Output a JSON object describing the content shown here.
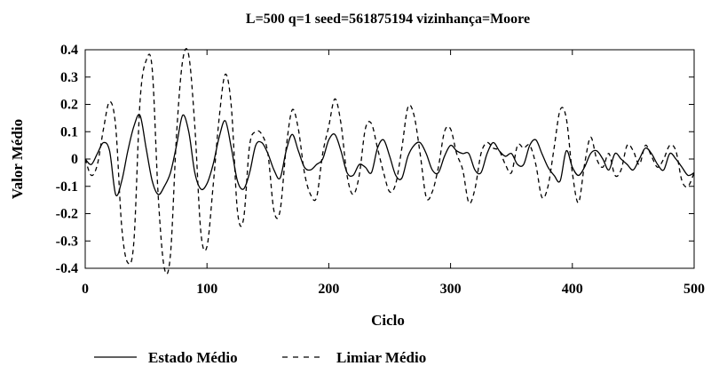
{
  "chart_data": {
    "type": "line",
    "title": "L=500  q=1  seed=561875194  vizinhança=Moore",
    "xlabel": "Ciclo",
    "ylabel": "Valor Médio",
    "xlim": [
      0,
      500
    ],
    "ylim": [
      -0.4,
      0.4
    ],
    "grid": false,
    "legend_position": "bottom",
    "x_ticks": [
      "0",
      "100",
      "200",
      "300",
      "400",
      "500"
    ],
    "y_ticks": [
      "0.4",
      "0.3",
      "0.2",
      "0.1",
      "0",
      "-0.1",
      "-0.2",
      "-0.3",
      "-0.4"
    ],
    "series": [
      {
        "name": "Estado Médio",
        "style": "solid",
        "color": "#000000",
        "x": [
          0,
          5,
          10,
          15,
          20,
          25,
          30,
          35,
          40,
          45,
          50,
          55,
          60,
          65,
          70,
          75,
          80,
          85,
          90,
          95,
          100,
          105,
          110,
          115,
          120,
          125,
          130,
          135,
          140,
          145,
          150,
          155,
          160,
          165,
          170,
          175,
          180,
          185,
          190,
          195,
          200,
          205,
          210,
          215,
          220,
          225,
          230,
          235,
          240,
          245,
          250,
          255,
          260,
          265,
          270,
          275,
          280,
          285,
          290,
          295,
          300,
          305,
          310,
          315,
          320,
          325,
          330,
          335,
          340,
          345,
          350,
          355,
          360,
          365,
          370,
          375,
          380,
          385,
          390,
          395,
          400,
          405,
          410,
          415,
          420,
          425,
          430,
          435,
          440,
          445,
          450,
          455,
          460,
          465,
          470,
          475,
          480,
          485,
          490,
          495,
          500
        ],
        "y": [
          0,
          -0.02,
          0.02,
          0.06,
          0.03,
          -0.13,
          -0.08,
          0.03,
          0.12,
          0.16,
          0.04,
          -0.08,
          -0.13,
          -0.1,
          -0.05,
          0.05,
          0.16,
          0.1,
          -0.05,
          -0.11,
          -0.09,
          -0.02,
          0.08,
          0.14,
          0.04,
          -0.08,
          -0.11,
          -0.05,
          0.05,
          0.06,
          0.02,
          -0.04,
          -0.07,
          0.03,
          0.09,
          0.03,
          -0.03,
          -0.04,
          -0.02,
          0,
          0.07,
          0.09,
          0.03,
          -0.05,
          -0.06,
          -0.02,
          -0.03,
          -0.05,
          0.04,
          0.07,
          0.01,
          -0.06,
          -0.07,
          0.01,
          0.05,
          0.06,
          0.02,
          -0.04,
          -0.05,
          0.01,
          0.05,
          0.03,
          0.02,
          0.02,
          -0.04,
          -0.05,
          0.02,
          0.06,
          0.03,
          0.01,
          0.02,
          -0.02,
          -0.02,
          0.05,
          0.07,
          0.02,
          -0.03,
          -0.06,
          -0.08,
          0.03,
          -0.03,
          -0.06,
          -0.03,
          0.02,
          0.03,
          0,
          -0.04,
          0.02,
          0,
          -0.02,
          -0.04,
          0,
          0.04,
          0.02,
          -0.02,
          -0.04,
          0.02,
          0,
          -0.03,
          -0.06,
          -0.05
        ]
      },
      {
        "name": "Limiar Médio",
        "style": "dashed",
        "color": "#000000",
        "x": [
          0,
          5,
          10,
          15,
          20,
          25,
          30,
          35,
          40,
          45,
          50,
          55,
          60,
          65,
          70,
          75,
          80,
          85,
          90,
          95,
          100,
          105,
          110,
          115,
          120,
          125,
          130,
          135,
          140,
          145,
          150,
          155,
          160,
          165,
          170,
          175,
          180,
          185,
          190,
          195,
          200,
          205,
          210,
          215,
          220,
          225,
          230,
          235,
          240,
          245,
          250,
          255,
          260,
          265,
          270,
          275,
          280,
          285,
          290,
          295,
          300,
          305,
          310,
          315,
          320,
          325,
          330,
          335,
          340,
          345,
          350,
          355,
          360,
          365,
          370,
          375,
          380,
          385,
          390,
          395,
          400,
          405,
          410,
          415,
          420,
          425,
          430,
          435,
          440,
          445,
          450,
          455,
          460,
          465,
          470,
          475,
          480,
          485,
          490,
          495,
          500
        ],
        "y": [
          0,
          -0.06,
          -0.02,
          0.11,
          0.21,
          0.12,
          -0.25,
          -0.38,
          -0.3,
          0.21,
          0.36,
          0.33,
          -0.14,
          -0.41,
          -0.35,
          0.09,
          0.36,
          0.38,
          0.12,
          -0.27,
          -0.32,
          -0.1,
          0.15,
          0.31,
          0.19,
          -0.19,
          -0.22,
          0.05,
          0.1,
          0.09,
          0.02,
          -0.19,
          -0.19,
          0.04,
          0.18,
          0.11,
          -0.05,
          -0.13,
          -0.14,
          0.02,
          0.12,
          0.22,
          0.13,
          -0.06,
          -0.13,
          -0.06,
          0.11,
          0.13,
          0.04,
          -0.05,
          -0.12,
          -0.09,
          0.04,
          0.19,
          0.16,
          0.02,
          -0.14,
          -0.12,
          -0.03,
          0.1,
          0.11,
          0.02,
          -0.04,
          -0.16,
          -0.11,
          0.02,
          0.06,
          0.04,
          0.03,
          -0.02,
          -0.05,
          0.05,
          0.04,
          0.05,
          -0.02,
          -0.14,
          -0.1,
          0.04,
          0.18,
          0.15,
          -0.05,
          -0.16,
          -0.02,
          0.08,
          0,
          -0.03,
          0.02,
          -0.06,
          -0.04,
          0.05,
          0.03,
          -0.02,
          0.05,
          0.01,
          -0.03,
          0,
          0.05,
          0.03,
          -0.08,
          -0.1,
          -0.05
        ]
      }
    ]
  }
}
